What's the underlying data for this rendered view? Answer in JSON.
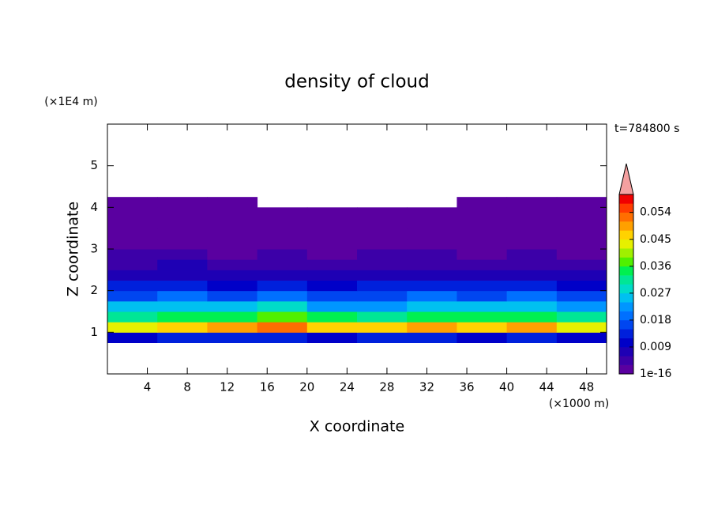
{
  "chart_data": {
    "type": "heatmap",
    "title": "density of cloud",
    "xlabel": "X coordinate",
    "ylabel": "Z coordinate",
    "xunit": "(×1000 m)",
    "yunit": "(×1E4 m)",
    "annotation": "t=784800 s",
    "xlim": [
      0,
      50
    ],
    "ylim": [
      0,
      6
    ],
    "xticks": [
      4,
      8,
      12,
      16,
      20,
      24,
      28,
      32,
      36,
      40,
      44,
      48
    ],
    "yticks": [
      1,
      2,
      3,
      4,
      5
    ],
    "x": [
      2.5,
      7.5,
      12.5,
      17.5,
      22.5,
      27.5,
      32.5,
      37.5,
      42.5,
      47.5
    ],
    "y": [
      0.875,
      1.125,
      1.375,
      1.625,
      1.875,
      2.125,
      2.375,
      2.625,
      2.875,
      3.125,
      3.375,
      3.625,
      3.875,
      4.125
    ],
    "z": [
      [
        0.011,
        0.012,
        0.013,
        0.012,
        0.011,
        0.012,
        0.012,
        0.011,
        0.012,
        0.011
      ],
      [
        0.042,
        0.046,
        0.049,
        0.053,
        0.047,
        0.045,
        0.048,
        0.046,
        0.05,
        0.044
      ],
      [
        0.032,
        0.035,
        0.036,
        0.038,
        0.034,
        0.031,
        0.035,
        0.033,
        0.034,
        0.03
      ],
      [
        0.024,
        0.026,
        0.025,
        0.027,
        0.023,
        0.022,
        0.025,
        0.024,
        0.026,
        0.022
      ],
      [
        0.018,
        0.019,
        0.017,
        0.02,
        0.016,
        0.017,
        0.019,
        0.018,
        0.02,
        0.016
      ],
      [
        0.012,
        0.013,
        0.011,
        0.014,
        0.011,
        0.012,
        0.013,
        0.012,
        0.014,
        0.011
      ],
      [
        0.008,
        0.009,
        0.007,
        0.009,
        0.007,
        0.008,
        0.009,
        0.008,
        0.009,
        0.007
      ],
      [
        0.005,
        0.006,
        0.004,
        0.005,
        0.004,
        0.005,
        0.005,
        0.004,
        0.005,
        0.004
      ],
      [
        0.003,
        0.003,
        0.0025,
        0.003,
        0.002,
        0.003,
        0.003,
        0.0025,
        0.003,
        0.002
      ],
      [
        0.001,
        0.001,
        0.001,
        0.001,
        0.001,
        0.001,
        0.001,
        0.001,
        0.001,
        0.001
      ],
      [
        0.0005,
        0.0005,
        0.0005,
        0.0005,
        0.0005,
        0.0005,
        0.0005,
        0.0005,
        0.0005,
        0.0005
      ],
      [
        0.0002,
        0.0002,
        0.0002,
        0.0002,
        0.0002,
        0.0002,
        0.0002,
        0.0002,
        0.0002,
        0.0002
      ],
      [
        0.0001,
        0.0001,
        0.0001,
        0.0001,
        0.0001,
        0.0001,
        0.0001,
        0.0001,
        0.0001,
        0.0001
      ],
      [
        5e-05,
        5e-05,
        5e-05,
        null,
        null,
        null,
        null,
        5e-05,
        5e-05,
        5e-05
      ]
    ],
    "colorbar": {
      "lim": [
        0,
        0.06
      ],
      "ticks": [
        1e-16,
        0.009,
        0.018,
        0.027,
        0.036,
        0.045,
        0.054
      ],
      "colors": [
        "#5a00a0",
        "#3c00a8",
        "#1e00b4",
        "#0000c8",
        "#0020dc",
        "#0046f0",
        "#0070ff",
        "#0096ff",
        "#00c0f0",
        "#00dcc8",
        "#00e696",
        "#00f050",
        "#50f000",
        "#a0f000",
        "#e6f000",
        "#ffd200",
        "#ffa000",
        "#ff6e00",
        "#ff3c00",
        "#f00000"
      ],
      "extend_color": "#f4a0a0"
    }
  }
}
